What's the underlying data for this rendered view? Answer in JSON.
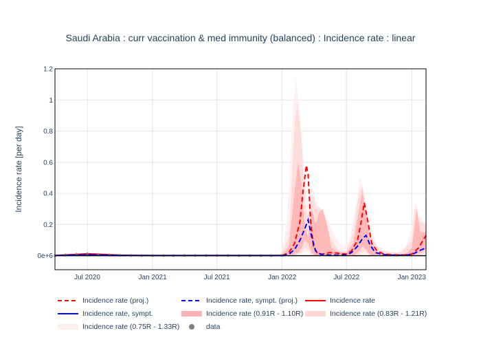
{
  "chart_data": {
    "type": "line",
    "title": "Saudi Arabia : curr vaccination & med immunity (balanced) : Incidence rate : linear",
    "xlabel": "",
    "ylabel": "Incidence rate [per day]",
    "xlim": [
      "2020-04-01",
      "2023-02-10"
    ],
    "ylim": [
      -0.09,
      1.2
    ],
    "x_ticks": [
      {
        "date": "2020-07-01",
        "label": "Jul 2020"
      },
      {
        "date": "2021-01-01",
        "label": "Jan 2021"
      },
      {
        "date": "2021-07-01",
        "label": "Jul 2021"
      },
      {
        "date": "2022-01-01",
        "label": "Jan 2022"
      },
      {
        "date": "2022-07-01",
        "label": "Jul 2022"
      },
      {
        "date": "2023-01-01",
        "label": "Jan 2023"
      }
    ],
    "y_ticks": [
      {
        "value": 0,
        "label": "0e+6"
      },
      {
        "value": 0.2,
        "label": "0.2"
      },
      {
        "value": 0.4,
        "label": "0.4"
      },
      {
        "value": 0.6,
        "label": "0.6"
      },
      {
        "value": 0.8,
        "label": "0.8"
      },
      {
        "value": 1.0,
        "label": "1"
      },
      {
        "value": 1.2,
        "label": "1.2"
      }
    ],
    "grid": true,
    "legend_position": "bottom",
    "series": [
      {
        "name": "Incidence rate (proj.)",
        "style": "dash",
        "color": "#ff0000",
        "x": [
          "2022-01-01",
          "2022-01-20",
          "2022-02-05",
          "2022-02-20",
          "2022-03-01",
          "2022-03-10",
          "2022-03-15",
          "2022-03-22",
          "2022-03-30",
          "2022-04-10",
          "2022-04-25",
          "2022-05-15",
          "2022-06-10",
          "2022-06-30",
          "2022-07-15",
          "2022-08-01",
          "2022-08-10",
          "2022-08-20",
          "2022-08-30",
          "2022-09-10",
          "2022-09-25",
          "2022-10-15",
          "2022-11-10",
          "2022-12-10",
          "2023-01-01",
          "2023-01-20",
          "2023-02-10"
        ],
        "y": [
          0.0,
          0.02,
          0.08,
          0.22,
          0.42,
          0.58,
          0.52,
          0.22,
          0.06,
          0.015,
          0.01,
          0.02,
          0.015,
          0.01,
          0.03,
          0.1,
          0.2,
          0.34,
          0.22,
          0.08,
          0.03,
          0.01,
          0.005,
          0.005,
          0.01,
          0.05,
          0.13
        ]
      },
      {
        "name": "Incidence rate, sympt. (proj.)",
        "style": "dash",
        "color": "#0000ff",
        "x": [
          "2022-01-01",
          "2022-01-20",
          "2022-02-05",
          "2022-02-20",
          "2022-03-05",
          "2022-03-15",
          "2022-03-25",
          "2022-04-05",
          "2022-04-20",
          "2022-05-15",
          "2022-06-10",
          "2022-06-30",
          "2022-07-15",
          "2022-08-01",
          "2022-08-15",
          "2022-08-25",
          "2022-09-05",
          "2022-09-20",
          "2022-10-15",
          "2022-11-10",
          "2022-12-10",
          "2023-01-01",
          "2023-01-20",
          "2023-02-10"
        ],
        "y": [
          0.0,
          0.01,
          0.04,
          0.1,
          0.17,
          0.23,
          0.12,
          0.03,
          0.008,
          0.004,
          0.004,
          0.006,
          0.02,
          0.06,
          0.11,
          0.13,
          0.07,
          0.02,
          0.006,
          0.003,
          0.003,
          0.006,
          0.03,
          0.05
        ]
      },
      {
        "name": "Incidence rate",
        "style": "solid",
        "color": "#ff0000",
        "x": [
          "2020-04-01",
          "2020-06-01",
          "2020-07-01",
          "2020-08-15",
          "2020-10-01",
          "2021-01-01",
          "2021-04-01",
          "2021-07-01",
          "2021-10-01",
          "2021-12-31"
        ],
        "y": [
          0.002,
          0.008,
          0.012,
          0.008,
          0.003,
          0.001,
          0.001,
          0.002,
          0.001,
          0.002
        ]
      },
      {
        "name": "Incidence rate, sympt.",
        "style": "solid",
        "color": "#0000ff",
        "x": [
          "2020-04-01",
          "2020-06-01",
          "2020-07-01",
          "2020-08-15",
          "2020-10-01",
          "2021-01-01",
          "2021-04-01",
          "2021-07-01",
          "2021-10-01",
          "2021-12-31"
        ],
        "y": [
          0.001,
          0.004,
          0.006,
          0.004,
          0.002,
          0.001,
          0.001,
          0.001,
          0.001,
          0.001
        ]
      },
      {
        "name": "Incidence rate (0.91R - 1.10R)",
        "style": "band",
        "color": "#ffb3b3",
        "x": [
          "2022-01-01",
          "2022-01-20",
          "2022-02-05",
          "2022-02-15",
          "2022-02-25",
          "2022-03-05",
          "2022-03-15",
          "2022-03-25",
          "2022-04-05",
          "2022-04-15",
          "2022-04-25",
          "2022-05-05",
          "2022-05-20",
          "2022-06-10",
          "2022-07-01",
          "2022-07-20",
          "2022-08-05",
          "2022-08-15",
          "2022-08-25",
          "2022-09-05",
          "2022-09-20",
          "2022-10-15",
          "2022-11-15",
          "2022-12-15",
          "2023-01-01",
          "2023-01-15",
          "2023-01-25",
          "2023-02-10"
        ],
        "lower": [
          0,
          0,
          0.01,
          0.02,
          0.05,
          0.1,
          0.08,
          0.02,
          0,
          0,
          0,
          0,
          0,
          0,
          0,
          0,
          0.03,
          0.06,
          0.04,
          0.01,
          0,
          0,
          0,
          0,
          0,
          0.01,
          0.02,
          0.04
        ],
        "upper": [
          0.01,
          0.06,
          0.42,
          0.6,
          0.45,
          0.2,
          0.12,
          0.3,
          0.2,
          0.28,
          0.3,
          0.22,
          0.05,
          0.02,
          0.02,
          0.08,
          0.3,
          0.42,
          0.25,
          0.1,
          0.03,
          0.01,
          0.01,
          0.01,
          0.05,
          0.3,
          0.15,
          0.15
        ]
      },
      {
        "name": "Incidence rate (0.83R - 1.21R)",
        "style": "band",
        "color": "#ffd9d9",
        "x": [
          "2022-01-01",
          "2022-01-20",
          "2022-02-05",
          "2022-02-12",
          "2022-02-25",
          "2022-03-05",
          "2022-03-15",
          "2022-03-25",
          "2022-04-05",
          "2022-04-20",
          "2022-05-05",
          "2022-05-20",
          "2022-06-10",
          "2022-07-01",
          "2022-07-20",
          "2022-08-05",
          "2022-08-15",
          "2022-08-25",
          "2022-09-10",
          "2022-10-01",
          "2022-11-01",
          "2022-12-01",
          "2023-01-01",
          "2023-01-10",
          "2023-01-20",
          "2023-02-10"
        ],
        "lower": [
          0,
          0,
          0,
          0.01,
          0.02,
          0.05,
          0.04,
          0.01,
          0,
          0,
          0,
          0,
          0,
          0,
          0,
          0.01,
          0.03,
          0.02,
          0,
          0,
          0,
          0,
          0,
          0,
          0,
          0.02
        ],
        "upper": [
          0.02,
          0.12,
          0.85,
          0.98,
          0.75,
          0.35,
          0.25,
          0.4,
          0.32,
          0.3,
          0.2,
          0.1,
          0.03,
          0.03,
          0.15,
          0.4,
          0.45,
          0.3,
          0.12,
          0.04,
          0.02,
          0.02,
          0.1,
          0.32,
          0.22,
          0.2
        ]
      },
      {
        "name": "Incidence rate (0.75R - 1.33R)",
        "style": "band",
        "color": "#ffeeee",
        "x": [
          "2022-01-01",
          "2022-01-15",
          "2022-02-01",
          "2022-02-08",
          "2022-02-20",
          "2022-03-05",
          "2022-03-15",
          "2022-03-25",
          "2022-04-05",
          "2022-04-20",
          "2022-05-10",
          "2022-06-01",
          "2022-06-20",
          "2022-07-10",
          "2022-07-25",
          "2022-08-08",
          "2022-08-20",
          "2022-09-05",
          "2022-09-25",
          "2022-10-20",
          "2022-11-20",
          "2022-12-15",
          "2023-01-01",
          "2023-01-12",
          "2023-01-25",
          "2023-02-10"
        ],
        "lower": [
          0,
          0,
          0,
          0,
          0.01,
          0.02,
          0.02,
          0,
          0,
          0,
          0,
          0,
          0,
          0,
          0,
          0,
          0.01,
          0,
          0,
          0,
          0,
          0,
          0,
          0,
          0,
          0
        ],
        "upper": [
          0.03,
          0.25,
          0.95,
          1.15,
          0.9,
          0.5,
          0.35,
          0.45,
          0.35,
          0.3,
          0.22,
          0.12,
          0.05,
          0.1,
          0.3,
          0.5,
          0.4,
          0.2,
          0.06,
          0.03,
          0.02,
          0.05,
          0.2,
          0.35,
          0.25,
          0.2
        ]
      },
      {
        "name": "data",
        "style": "markers",
        "color": "#808080",
        "x": [
          "2020-04-01",
          "2020-05-01",
          "2020-06-01",
          "2020-07-01",
          "2020-08-01",
          "2020-09-01",
          "2020-10-01",
          "2020-11-01",
          "2020-12-01",
          "2021-01-01",
          "2021-02-01",
          "2021-03-01",
          "2021-04-01",
          "2021-05-01",
          "2021-06-01",
          "2021-07-01",
          "2021-08-01",
          "2021-09-01",
          "2021-10-01",
          "2021-11-01",
          "2021-12-01",
          "2021-12-31"
        ],
        "y": [
          0.0,
          0.005,
          0.01,
          0.012,
          0.008,
          0.005,
          0.003,
          0.002,
          0.001,
          0.001,
          0.001,
          0.001,
          0.002,
          0.002,
          0.002,
          0.002,
          0.002,
          0.001,
          0.001,
          0.001,
          0.001,
          0.002
        ]
      }
    ]
  }
}
